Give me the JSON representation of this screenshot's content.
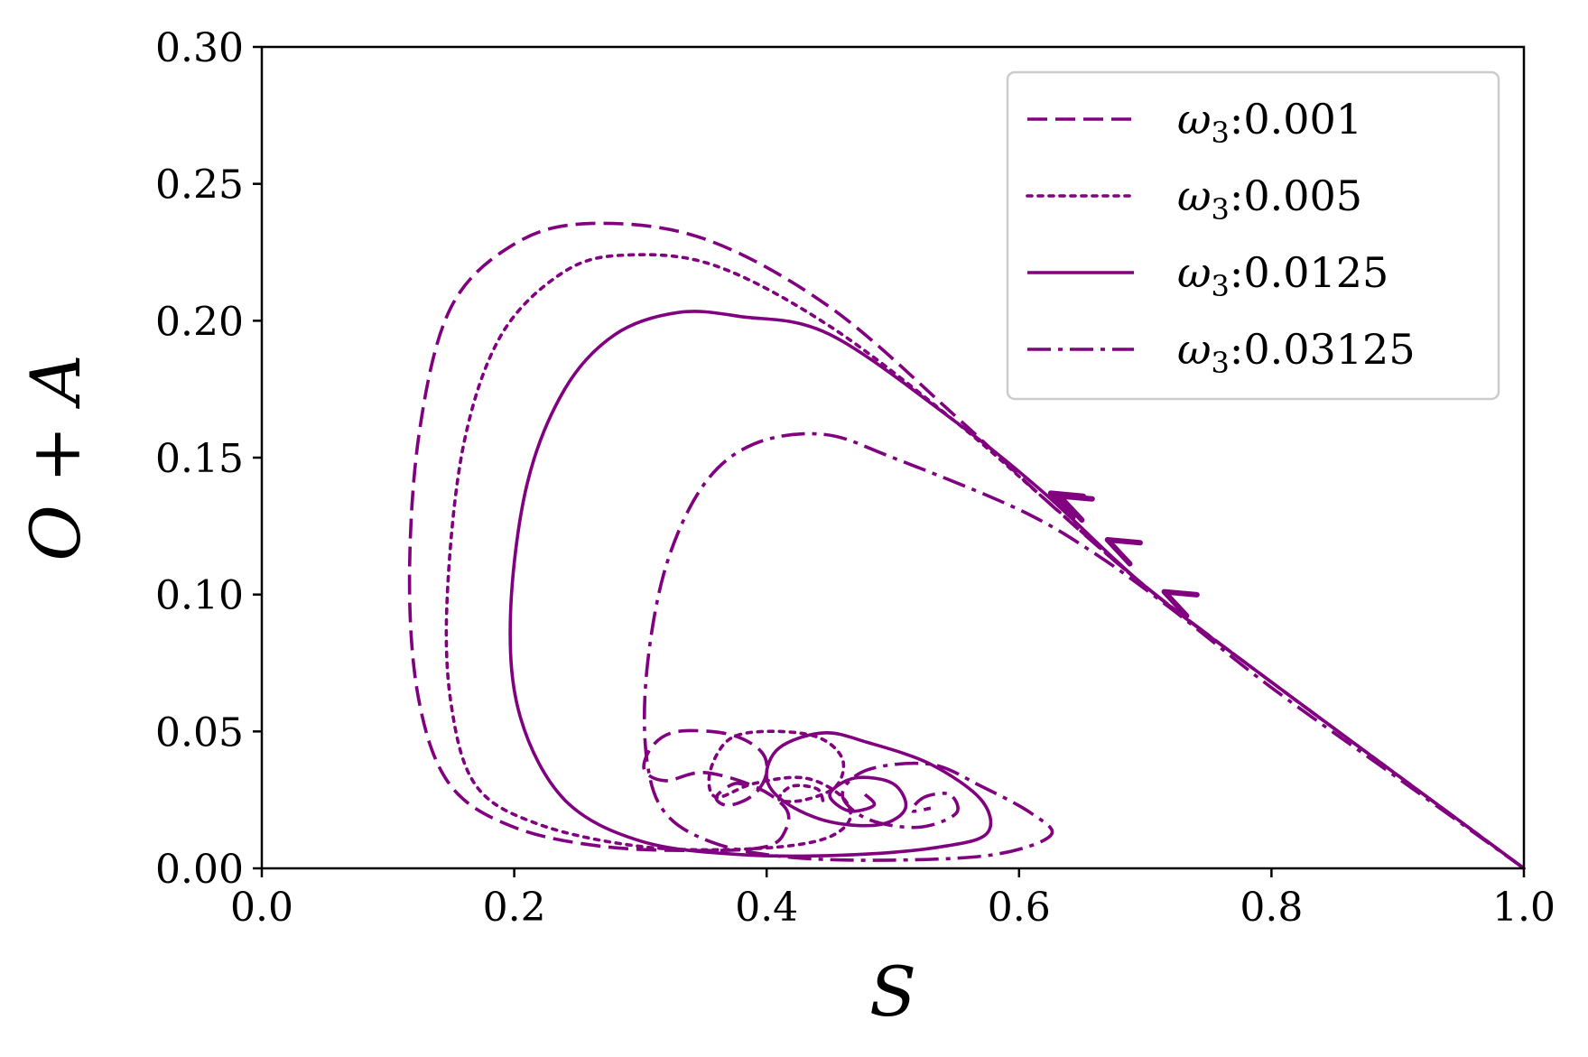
{
  "chart_data": {
    "type": "line",
    "xlabel": "S",
    "ylabel": "O + A",
    "xlim": [
      0.0,
      1.0
    ],
    "ylim": [
      0.0,
      0.3
    ],
    "xticks": [
      "0.0",
      "0.2",
      "0.4",
      "0.6",
      "0.8",
      "1.0"
    ],
    "yticks": [
      "0.00",
      "0.05",
      "0.10",
      "0.15",
      "0.20",
      "0.25",
      "0.30"
    ],
    "grid": false,
    "legend_position": "top-right",
    "color": "#800080",
    "series": [
      {
        "name": "ω3:0.001",
        "legend_symbol": "ω",
        "legend_sub": "3",
        "legend_value": ":0.001",
        "linestyle": "dashed",
        "points": [
          [
            1.0,
            0.0
          ],
          [
            0.9,
            0.034
          ],
          [
            0.8,
            0.068
          ],
          [
            0.7,
            0.103
          ],
          [
            0.62,
            0.135
          ],
          [
            0.55,
            0.165
          ],
          [
            0.45,
            0.205
          ],
          [
            0.35,
            0.23
          ],
          [
            0.26,
            0.2355
          ],
          [
            0.2,
            0.228
          ],
          [
            0.15,
            0.205
          ],
          [
            0.125,
            0.16
          ],
          [
            0.117,
            0.105
          ],
          [
            0.125,
            0.06
          ],
          [
            0.15,
            0.03
          ],
          [
            0.2,
            0.015
          ],
          [
            0.27,
            0.008
          ],
          [
            0.35,
            0.0065
          ],
          [
            0.4,
            0.008
          ],
          [
            0.415,
            0.014
          ],
          [
            0.415,
            0.022
          ],
          [
            0.39,
            0.03
          ],
          [
            0.35,
            0.035
          ],
          [
            0.32,
            0.032
          ],
          [
            0.303,
            0.036
          ],
          [
            0.31,
            0.045
          ],
          [
            0.33,
            0.05
          ],
          [
            0.37,
            0.049
          ],
          [
            0.395,
            0.043
          ],
          [
            0.4,
            0.035
          ],
          [
            0.39,
            0.027
          ],
          [
            0.37,
            0.023
          ],
          [
            0.36,
            0.026
          ],
          [
            0.375,
            0.031
          ],
          [
            0.39,
            0.029
          ]
        ]
      },
      {
        "name": "ω3:0.005",
        "legend_symbol": "ω",
        "legend_sub": "3",
        "legend_value": ":0.005",
        "linestyle": "dotted",
        "points": [
          [
            1.0,
            0.0
          ],
          [
            0.9,
            0.034
          ],
          [
            0.8,
            0.068
          ],
          [
            0.7,
            0.103
          ],
          [
            0.62,
            0.135
          ],
          [
            0.55,
            0.163
          ],
          [
            0.45,
            0.198
          ],
          [
            0.36,
            0.22
          ],
          [
            0.29,
            0.224
          ],
          [
            0.24,
            0.218
          ],
          [
            0.19,
            0.195
          ],
          [
            0.16,
            0.155
          ],
          [
            0.147,
            0.1
          ],
          [
            0.15,
            0.06
          ],
          [
            0.17,
            0.03
          ],
          [
            0.22,
            0.016
          ],
          [
            0.3,
            0.008
          ],
          [
            0.38,
            0.007
          ],
          [
            0.44,
            0.01
          ],
          [
            0.465,
            0.017
          ],
          [
            0.46,
            0.026
          ],
          [
            0.43,
            0.033
          ],
          [
            0.39,
            0.031
          ],
          [
            0.36,
            0.026
          ],
          [
            0.355,
            0.035
          ],
          [
            0.37,
            0.047
          ],
          [
            0.4,
            0.05
          ],
          [
            0.44,
            0.048
          ],
          [
            0.46,
            0.04
          ],
          [
            0.455,
            0.03
          ],
          [
            0.43,
            0.025
          ],
          [
            0.41,
            0.025
          ],
          [
            0.42,
            0.03
          ],
          [
            0.44,
            0.029
          ],
          [
            0.445,
            0.024
          ]
        ]
      },
      {
        "name": "ω3:0.0125",
        "legend_symbol": "ω",
        "legend_sub": "3",
        "legend_value": ":0.0125",
        "linestyle": "solid",
        "points": [
          [
            1.0,
            0.0
          ],
          [
            0.9,
            0.034
          ],
          [
            0.8,
            0.068
          ],
          [
            0.7,
            0.103
          ],
          [
            0.62,
            0.137
          ],
          [
            0.55,
            0.163
          ],
          [
            0.45,
            0.195
          ],
          [
            0.38,
            0.2015
          ],
          [
            0.33,
            0.203
          ],
          [
            0.28,
            0.195
          ],
          [
            0.24,
            0.175
          ],
          [
            0.21,
            0.14
          ],
          [
            0.197,
            0.092
          ],
          [
            0.205,
            0.055
          ],
          [
            0.24,
            0.025
          ],
          [
            0.3,
            0.01
          ],
          [
            0.38,
            0.005
          ],
          [
            0.47,
            0.005
          ],
          [
            0.54,
            0.008
          ],
          [
            0.575,
            0.013
          ],
          [
            0.57,
            0.025
          ],
          [
            0.53,
            0.038
          ],
          [
            0.48,
            0.046
          ],
          [
            0.445,
            0.0495
          ],
          [
            0.41,
            0.044
          ],
          [
            0.4,
            0.033
          ],
          [
            0.415,
            0.024
          ],
          [
            0.45,
            0.017
          ],
          [
            0.49,
            0.016
          ],
          [
            0.51,
            0.022
          ],
          [
            0.5,
            0.031
          ],
          [
            0.47,
            0.033
          ],
          [
            0.45,
            0.027
          ],
          [
            0.465,
            0.021
          ],
          [
            0.485,
            0.023
          ],
          [
            0.478,
            0.027
          ]
        ]
      },
      {
        "name": "ω3:0.03125",
        "legend_symbol": "ω",
        "legend_sub": "3",
        "legend_value": ":0.03125",
        "linestyle": "dashdot",
        "points": [
          [
            1.0,
            0.0
          ],
          [
            0.9,
            0.033
          ],
          [
            0.8,
            0.066
          ],
          [
            0.72,
            0.095
          ],
          [
            0.66,
            0.115
          ],
          [
            0.6,
            0.131
          ],
          [
            0.5,
            0.15
          ],
          [
            0.445,
            0.1585
          ],
          [
            0.39,
            0.155
          ],
          [
            0.35,
            0.14
          ],
          [
            0.32,
            0.11
          ],
          [
            0.305,
            0.072
          ],
          [
            0.305,
            0.04
          ],
          [
            0.32,
            0.02
          ],
          [
            0.36,
            0.009
          ],
          [
            0.42,
            0.004
          ],
          [
            0.5,
            0.003
          ],
          [
            0.58,
            0.005
          ],
          [
            0.625,
            0.012
          ],
          [
            0.61,
            0.02
          ],
          [
            0.57,
            0.03
          ],
          [
            0.53,
            0.038
          ],
          [
            0.48,
            0.036
          ],
          [
            0.46,
            0.027
          ],
          [
            0.48,
            0.018
          ],
          [
            0.52,
            0.015
          ],
          [
            0.55,
            0.02
          ],
          [
            0.545,
            0.027
          ],
          [
            0.525,
            0.026
          ],
          [
            0.515,
            0.021
          ],
          [
            0.53,
            0.022
          ]
        ]
      }
    ],
    "arrows": [
      {
        "series": "ω3:0.001",
        "at": [
          0.625,
          0.137
        ],
        "direction": "up-left"
      },
      {
        "series": "ω3:0.005",
        "at": [
          0.67,
          0.12
        ],
        "direction": "up-left"
      },
      {
        "series": "ω3:0.0125",
        "at": [
          0.632,
          0.136
        ],
        "direction": "up-left"
      },
      {
        "series": "ω3:0.03125",
        "at": [
          0.715,
          0.101
        ],
        "direction": "up-left"
      }
    ]
  }
}
